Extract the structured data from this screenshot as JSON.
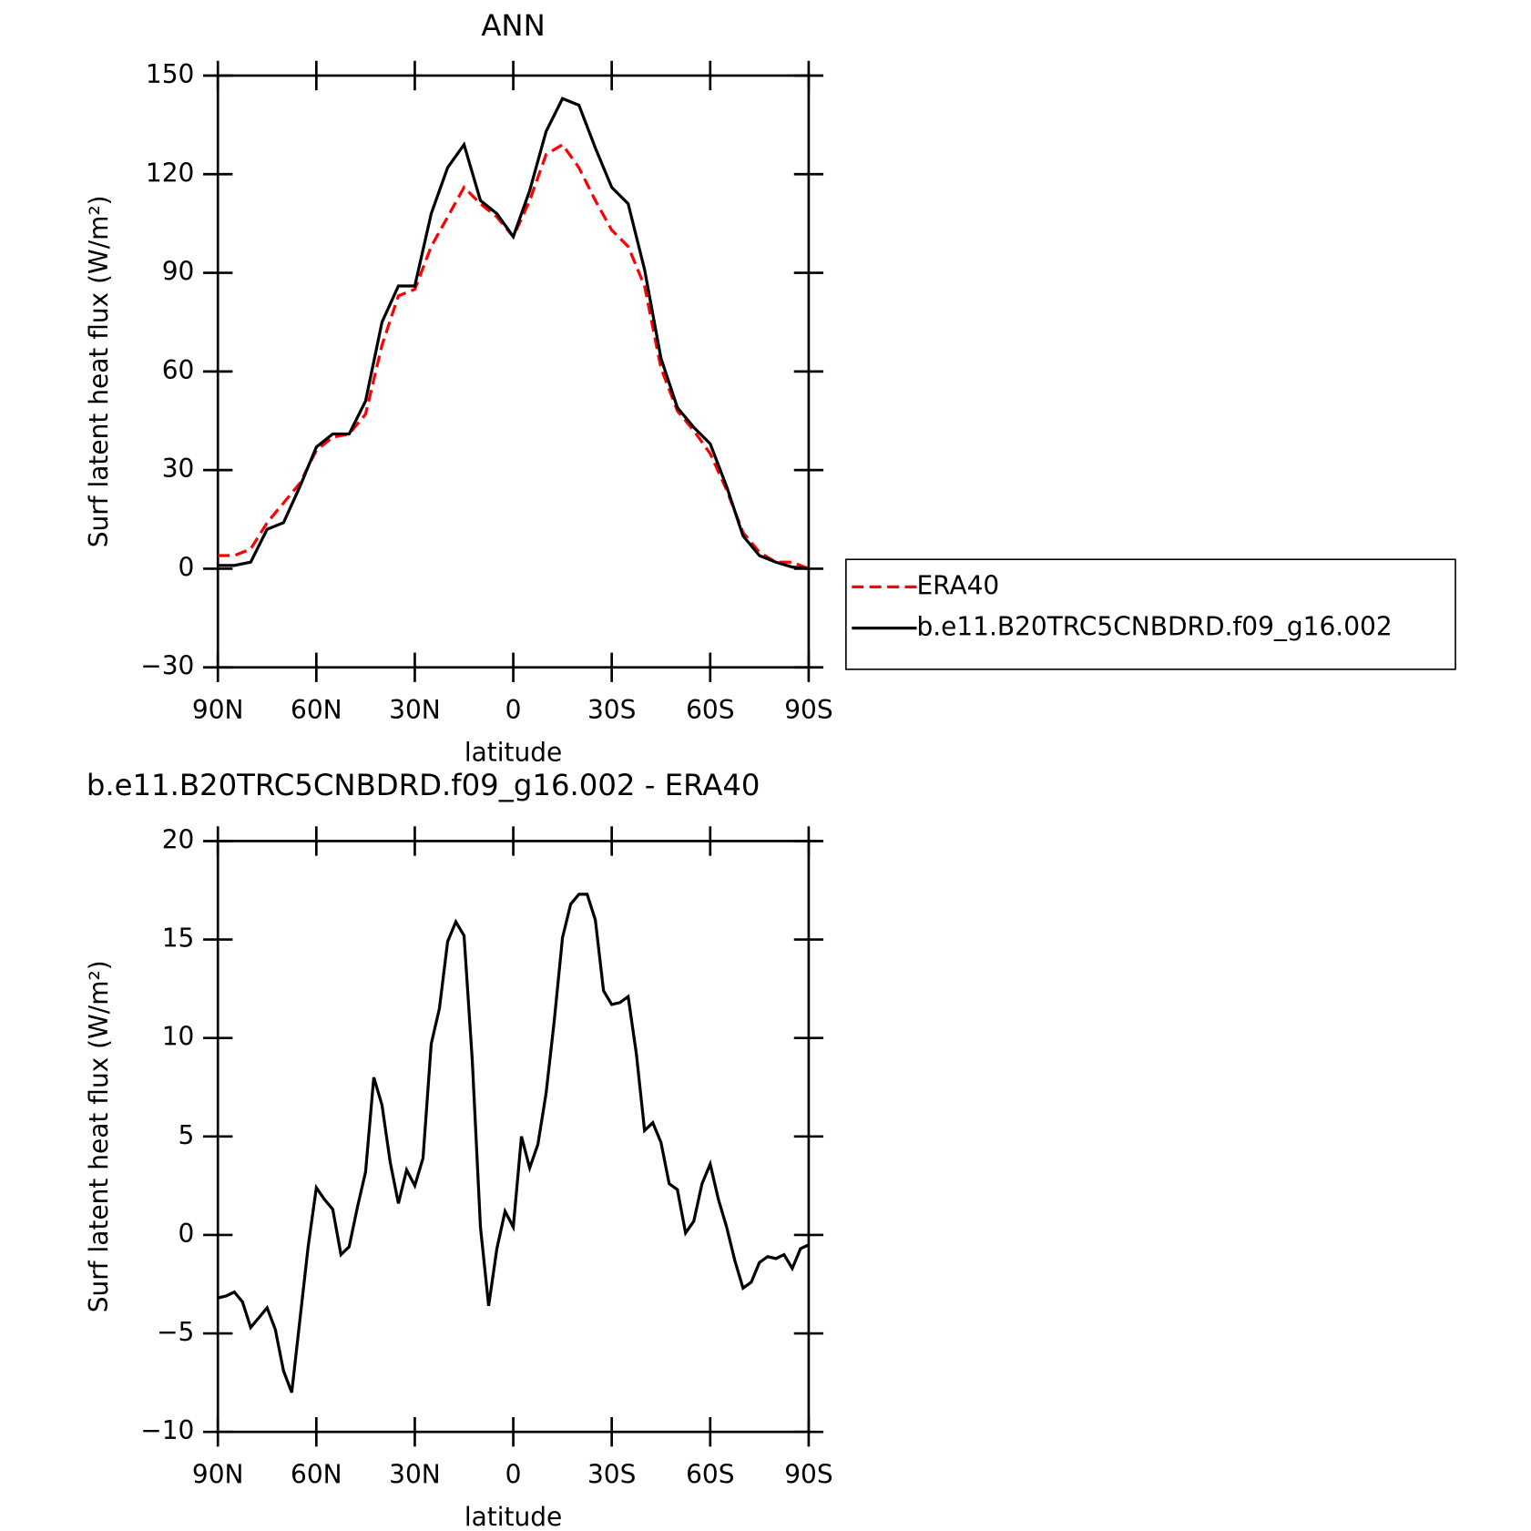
{
  "chart_data": [
    {
      "type": "line",
      "title": "ANN",
      "xlabel": "latitude",
      "ylabel": "Surf latent heat flux (W/m²)",
      "x": [
        90,
        85,
        80,
        75,
        70,
        65,
        60,
        55,
        50,
        45,
        40,
        35,
        30,
        25,
        20,
        15,
        10,
        5,
        0,
        -5,
        -10,
        -15,
        -20,
        -25,
        -30,
        -35,
        -40,
        -45,
        -50,
        -55,
        -60,
        -65,
        -70,
        -75,
        -80,
        -85,
        -90
      ],
      "series": [
        {
          "name": "ERA40",
          "color": "#ff0000",
          "dash": true,
          "values": [
            4,
            4,
            6,
            14,
            20,
            26,
            36,
            40,
            41,
            47,
            68,
            83,
            85,
            98,
            107,
            116,
            111,
            107,
            101,
            112,
            126,
            129,
            122,
            112,
            103,
            98,
            86,
            61,
            48,
            42,
            35,
            24,
            11,
            5,
            2,
            2,
            0
          ]
        },
        {
          "name": "b.e11.B20TRC5CNBDRD.f09_g16.002",
          "color": "#000000",
          "dash": false,
          "values": [
            1,
            1,
            2,
            12,
            14,
            25,
            37,
            41,
            41,
            51,
            75,
            86,
            86,
            108,
            122,
            129,
            112,
            108,
            101,
            115,
            133,
            143,
            141,
            128,
            116,
            111,
            91,
            64,
            49,
            43,
            38,
            25,
            10,
            4,
            2,
            0.5,
            0
          ]
        }
      ],
      "xlim": [
        90,
        -90
      ],
      "xticks": [
        {
          "value": 90,
          "label": "90N"
        },
        {
          "value": 60,
          "label": "60N"
        },
        {
          "value": 30,
          "label": "30N"
        },
        0,
        {
          "value": -30,
          "label": "30S"
        },
        {
          "value": -60,
          "label": "60S"
        },
        {
          "value": -90,
          "label": "90S"
        }
      ],
      "ylim": [
        -30,
        150
      ],
      "yticks": [
        {
          "value": -30,
          "label": "−30"
        },
        0,
        30,
        60,
        90,
        120,
        150
      ],
      "legend": "outside-right"
    },
    {
      "type": "line",
      "title": "b.e11.B20TRC5CNBDRD.f09_g16.002 - ERA40",
      "xlabel": "latitude",
      "ylabel": "Surf latent heat flux (W/m²)",
      "x": [
        90,
        87.5,
        85,
        82.5,
        80,
        77.5,
        75,
        72.5,
        70,
        67.5,
        65,
        62.5,
        60,
        57.5,
        55,
        52.5,
        50,
        47.5,
        45,
        42.5,
        40,
        37.5,
        35,
        32.5,
        30,
        27.5,
        25,
        22.5,
        20,
        17.5,
        15,
        12.5,
        10,
        7.5,
        5,
        2.5,
        0,
        -2.5,
        -5,
        -7.5,
        -10,
        -12.5,
        -15,
        -17.5,
        -20,
        -22.5,
        -25,
        -27.5,
        -30,
        -32.5,
        -35,
        -37.5,
        -40,
        -42.5,
        -45,
        -47.5,
        -50,
        -52.5,
        -55,
        -57.5,
        -60,
        -62.5,
        -65,
        -67.5,
        -70,
        -72.5,
        -75,
        -77.5,
        -80,
        -82.5,
        -85,
        -87.5,
        -90
      ],
      "series": [
        {
          "color": "#000000",
          "dash": false,
          "values": [
            -3.2,
            -3.1,
            -2.9,
            -3.4,
            -4.7,
            -4.2,
            -3.7,
            -4.8,
            -6.9,
            -8.0,
            -4.3,
            -0.6,
            2.4,
            1.8,
            1.3,
            -1.0,
            -0.6,
            1.4,
            3.2,
            8.0,
            6.6,
            3.7,
            1.6,
            3.3,
            2.5,
            3.9,
            9.7,
            11.5,
            14.9,
            15.9,
            15.2,
            8.9,
            0.4,
            -3.6,
            -0.7,
            1.2,
            0.4,
            5.0,
            3.4,
            4.6,
            7.2,
            10.9,
            15.1,
            16.8,
            17.3,
            17.3,
            16.0,
            12.4,
            11.7,
            11.8,
            12.1,
            9.2,
            5.3,
            5.7,
            4.7,
            2.6,
            2.3,
            0.1,
            0.7,
            2.6,
            3.6,
            1.8,
            0.4,
            -1.3,
            -2.7,
            -2.4,
            -1.4,
            -1.1,
            -1.2,
            -1.0,
            -1.7,
            -0.7,
            -0.5
          ]
        }
      ],
      "xlim": [
        90,
        -90
      ],
      "xticks": [
        {
          "value": 90,
          "label": "90N"
        },
        {
          "value": 60,
          "label": "60N"
        },
        {
          "value": 30,
          "label": "30N"
        },
        0,
        {
          "value": -30,
          "label": "30S"
        },
        {
          "value": -60,
          "label": "60S"
        },
        {
          "value": -90,
          "label": "90S"
        }
      ],
      "ylim": [
        -10,
        20
      ],
      "yticks": [
        {
          "value": -10,
          "label": "−10"
        },
        {
          "value": -5,
          "label": "−5"
        },
        0,
        5,
        10,
        15,
        20
      ]
    }
  ]
}
